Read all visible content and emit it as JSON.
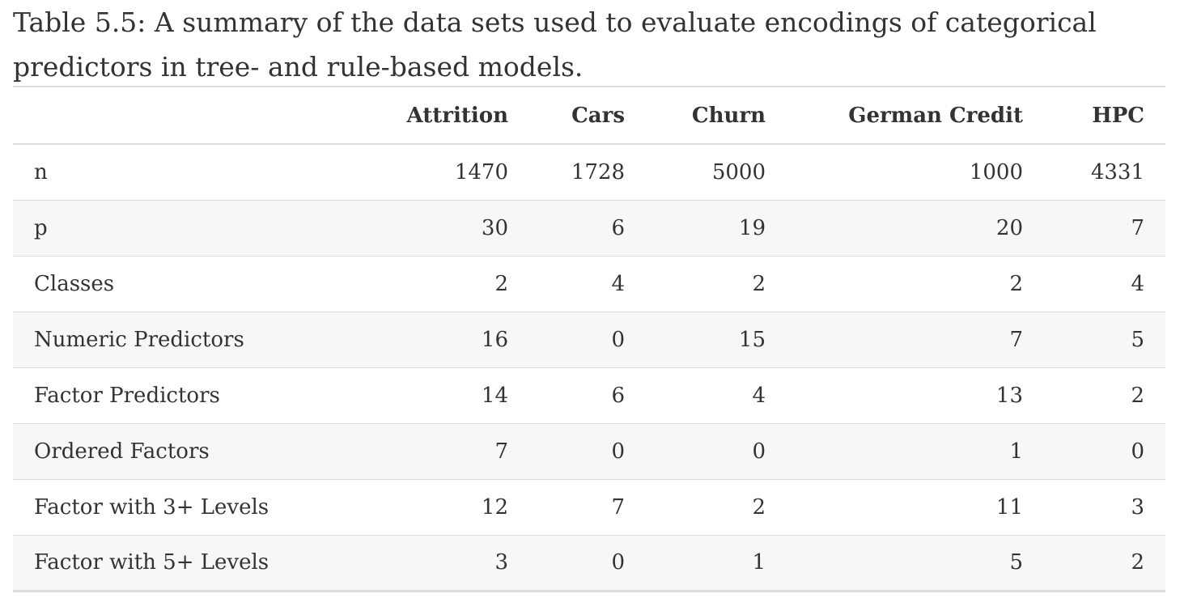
{
  "caption": "Table 5.5: A summary of the data sets used to evaluate encodings of categorical predictors in tree- and rule-based models.",
  "table": {
    "columns": [
      "",
      "Attrition",
      "Cars",
      "Churn",
      "German Credit",
      "HPC"
    ],
    "rows": [
      {
        "label": "n",
        "values": [
          "1470",
          "1728",
          "5000",
          "1000",
          "4331"
        ]
      },
      {
        "label": "p",
        "values": [
          "30",
          "6",
          "19",
          "20",
          "7"
        ]
      },
      {
        "label": "Classes",
        "values": [
          "2",
          "4",
          "2",
          "2",
          "4"
        ]
      },
      {
        "label": "Numeric Predictors",
        "values": [
          "16",
          "0",
          "15",
          "7",
          "5"
        ]
      },
      {
        "label": "Factor Predictors",
        "values": [
          "14",
          "6",
          "4",
          "13",
          "2"
        ]
      },
      {
        "label": "Ordered Factors",
        "values": [
          "7",
          "0",
          "0",
          "1",
          "0"
        ]
      },
      {
        "label": "Factor with 3+ Levels",
        "values": [
          "12",
          "7",
          "2",
          "11",
          "3"
        ]
      },
      {
        "label": "Factor with 5+ Levels",
        "values": [
          "3",
          "0",
          "1",
          "5",
          "2"
        ]
      }
    ]
  }
}
